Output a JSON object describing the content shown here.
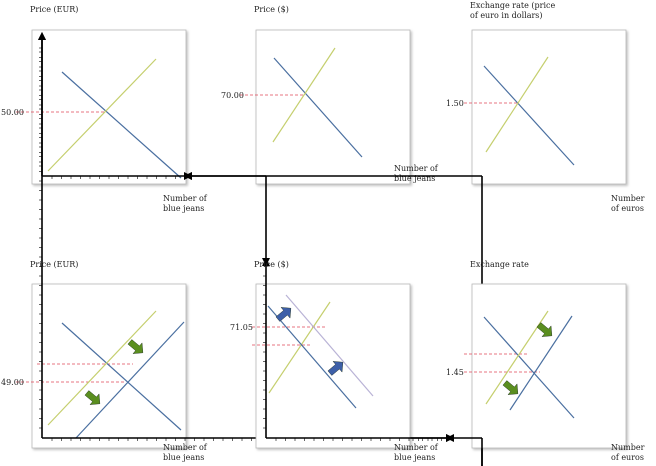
{
  "colors": {
    "supply": "#c5cf6e",
    "demand": "#4a6fa0",
    "shifted_demand": "#b9b3d6",
    "guide": "#e0485a",
    "arrow_blue": "#3d5fa8",
    "arrow_green": "#5a8e1f"
  },
  "panels": [
    {
      "id": "p1",
      "y_label": [
        "Price (EUR)"
      ],
      "x_label": [
        "Number of",
        "blue jeans"
      ],
      "price_label": "50.00",
      "arrow_icons": []
    },
    {
      "id": "p2",
      "y_label": [
        "Price ($)"
      ],
      "x_label": [
        "Number of",
        "blue jeans"
      ],
      "price_label": "70.00",
      "arrow_icons": []
    },
    {
      "id": "p3",
      "y_label": [
        "Exchange rate (price",
        "of euro in dollars)"
      ],
      "x_label": [
        "Number",
        "of euros"
      ],
      "price_label": "1.50",
      "arrow_icons": []
    },
    {
      "id": "p4",
      "y_label": [
        "Price (EUR)"
      ],
      "x_label": [
        "Number of",
        "blue jeans"
      ],
      "price_label": "49.00",
      "arrow_icons": [
        "green-arrow-down-right-icon",
        "green-arrow-down-right-icon"
      ]
    },
    {
      "id": "p5",
      "y_label": [
        "Price ($)"
      ],
      "x_label": [
        "Number of",
        "blue jeans"
      ],
      "price_label": "71.05",
      "arrow_icons": [
        "blue-arrow-up-right-icon",
        "blue-arrow-up-right-icon"
      ]
    },
    {
      "id": "p6",
      "y_label": [
        "Exchange rate"
      ],
      "x_label": [
        "Number",
        "of euros"
      ],
      "price_label": "1.45",
      "arrow_icons": [
        "green-arrow-down-right-icon",
        "green-arrow-down-right-icon"
      ]
    }
  ]
}
